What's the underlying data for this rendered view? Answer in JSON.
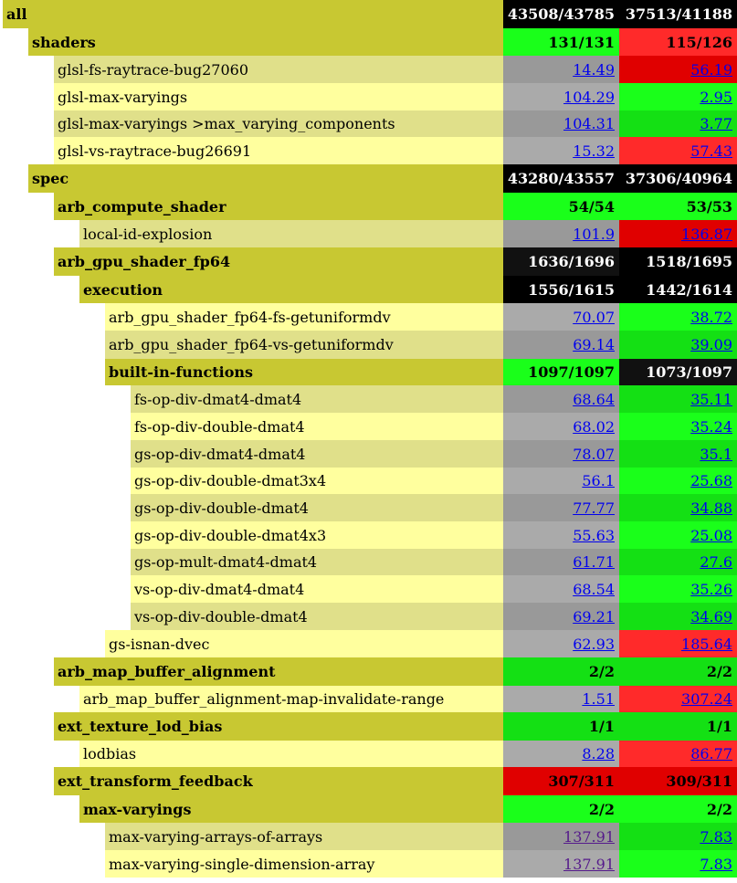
{
  "colors": {
    "group": "#c8c832",
    "leaf_alt": "#e0e08a",
    "leaf": "#ffff9e",
    "black": "#000000",
    "dark": "#111111",
    "green": "#1aff1a",
    "green_dark": "#14e014",
    "red": "#ff2a2a",
    "red_dark": "#e00000",
    "gray": "#a8a8a8",
    "gray_dark": "#999999"
  },
  "rows": [
    {
      "label": "all",
      "level": 0,
      "group": true,
      "c1": "43508/43785",
      "c2": "37513/41188",
      "bg1": "#000000",
      "bg2": "#000000"
    },
    {
      "label": "shaders",
      "level": 1,
      "group": true,
      "c1": "131/131",
      "c2": "115/126",
      "bg1": "#1aff1a",
      "bg2": "#ff2a2a"
    },
    {
      "label": "glsl-fs-raytrace-bug27060",
      "level": 2,
      "group": false,
      "c1": "14.49",
      "c2": "56.19",
      "bg1": "#999999",
      "bg2": "#e00000"
    },
    {
      "label": "glsl-max-varyings",
      "level": 2,
      "group": false,
      "c1": "104.29",
      "c2": "2.95",
      "bg1": "#aaaaaa",
      "bg2": "#1aff1a"
    },
    {
      "label": "glsl-max-varyings >max_varying_components",
      "level": 2,
      "group": false,
      "c1": "104.31",
      "c2": "3.77",
      "bg1": "#999999",
      "bg2": "#14e014"
    },
    {
      "label": "glsl-vs-raytrace-bug26691",
      "level": 2,
      "group": false,
      "c1": "15.32",
      "c2": "57.43",
      "bg1": "#aaaaaa",
      "bg2": "#ff2a2a"
    },
    {
      "label": "spec",
      "level": 1,
      "group": true,
      "c1": "43280/43557",
      "c2": "37306/40964",
      "bg1": "#000000",
      "bg2": "#000000"
    },
    {
      "label": "arb_compute_shader",
      "level": 2,
      "group": true,
      "c1": "54/54",
      "c2": "53/53",
      "bg1": "#1aff1a",
      "bg2": "#1aff1a"
    },
    {
      "label": "local-id-explosion",
      "level": 3,
      "group": false,
      "c1": "101.9",
      "c2": "136.87",
      "bg1": "#999999",
      "bg2": "#e00000"
    },
    {
      "label": "arb_gpu_shader_fp64",
      "level": 2,
      "group": true,
      "c1": "1636/1696",
      "c2": "1518/1695",
      "bg1": "#111111",
      "bg2": "#000000"
    },
    {
      "label": "execution",
      "level": 3,
      "group": true,
      "c1": "1556/1615",
      "c2": "1442/1614",
      "bg1": "#000000",
      "bg2": "#000000"
    },
    {
      "label": "arb_gpu_shader_fp64-fs-getuniformdv",
      "level": 4,
      "group": false,
      "c1": "70.07",
      "c2": "38.72",
      "bg1": "#aaaaaa",
      "bg2": "#1aff1a"
    },
    {
      "label": "arb_gpu_shader_fp64-vs-getuniformdv",
      "level": 4,
      "group": false,
      "c1": "69.14",
      "c2": "39.09",
      "bg1": "#999999",
      "bg2": "#14e014"
    },
    {
      "label": "built-in-functions",
      "level": 4,
      "group": true,
      "c1": "1097/1097",
      "c2": "1073/1097",
      "bg1": "#1aff1a",
      "bg2": "#111111"
    },
    {
      "label": "fs-op-div-dmat4-dmat4",
      "level": 5,
      "group": false,
      "c1": "68.64",
      "c2": "35.11",
      "bg1": "#999999",
      "bg2": "#14e014"
    },
    {
      "label": "fs-op-div-double-dmat4",
      "level": 5,
      "group": false,
      "c1": "68.02",
      "c2": "35.24",
      "bg1": "#aaaaaa",
      "bg2": "#1aff1a"
    },
    {
      "label": "gs-op-div-dmat4-dmat4",
      "level": 5,
      "group": false,
      "c1": "78.07",
      "c2": "35.1",
      "bg1": "#999999",
      "bg2": "#14e014"
    },
    {
      "label": "gs-op-div-double-dmat3x4",
      "level": 5,
      "group": false,
      "c1": "56.1",
      "c2": "25.68",
      "bg1": "#aaaaaa",
      "bg2": "#1aff1a"
    },
    {
      "label": "gs-op-div-double-dmat4",
      "level": 5,
      "group": false,
      "c1": "77.77",
      "c2": "34.88",
      "bg1": "#999999",
      "bg2": "#14e014"
    },
    {
      "label": "gs-op-div-double-dmat4x3",
      "level": 5,
      "group": false,
      "c1": "55.63",
      "c2": "25.08",
      "bg1": "#aaaaaa",
      "bg2": "#1aff1a"
    },
    {
      "label": "gs-op-mult-dmat4-dmat4",
      "level": 5,
      "group": false,
      "c1": "61.71",
      "c2": "27.6",
      "bg1": "#999999",
      "bg2": "#14e014"
    },
    {
      "label": "vs-op-div-dmat4-dmat4",
      "level": 5,
      "group": false,
      "c1": "68.54",
      "c2": "35.26",
      "bg1": "#aaaaaa",
      "bg2": "#1aff1a"
    },
    {
      "label": "vs-op-div-double-dmat4",
      "level": 5,
      "group": false,
      "c1": "69.21",
      "c2": "34.69",
      "bg1": "#999999",
      "bg2": "#14e014"
    },
    {
      "label": "gs-isnan-dvec",
      "level": 4,
      "group": false,
      "c1": "62.93",
      "c2": "185.64",
      "bg1": "#aaaaaa",
      "bg2": "#ff2a2a"
    },
    {
      "label": "arb_map_buffer_alignment",
      "level": 2,
      "group": true,
      "c1": "2/2",
      "c2": "2/2",
      "bg1": "#14e014",
      "bg2": "#14e014"
    },
    {
      "label": "arb_map_buffer_alignment-map-invalidate-range",
      "level": 3,
      "group": false,
      "c1": "1.51",
      "c2": "307.24",
      "bg1": "#aaaaaa",
      "bg2": "#ff2a2a"
    },
    {
      "label": "ext_texture_lod_bias",
      "level": 2,
      "group": true,
      "c1": "1/1",
      "c2": "1/1",
      "bg1": "#14e014",
      "bg2": "#14e014"
    },
    {
      "label": "lodbias",
      "level": 3,
      "group": false,
      "c1": "8.28",
      "c2": "86.77",
      "bg1": "#aaaaaa",
      "bg2": "#ff2a2a"
    },
    {
      "label": "ext_transform_feedback",
      "level": 2,
      "group": true,
      "c1": "307/311",
      "c2": "309/311",
      "bg1": "#e00000",
      "bg2": "#e00000"
    },
    {
      "label": "max-varyings",
      "level": 3,
      "group": true,
      "c1": "2/2",
      "c2": "2/2",
      "bg1": "#1aff1a",
      "bg2": "#1aff1a"
    },
    {
      "label": "max-varying-arrays-of-arrays",
      "level": 4,
      "group": false,
      "c1": "137.91",
      "c2": "7.83",
      "bg1": "#999999",
      "bg2": "#14e014",
      "visited": true
    },
    {
      "label": "max-varying-single-dimension-array",
      "level": 4,
      "group": false,
      "c1": "137.91",
      "c2": "7.83",
      "bg1": "#aaaaaa",
      "bg2": "#1aff1a",
      "visited": true
    }
  ]
}
